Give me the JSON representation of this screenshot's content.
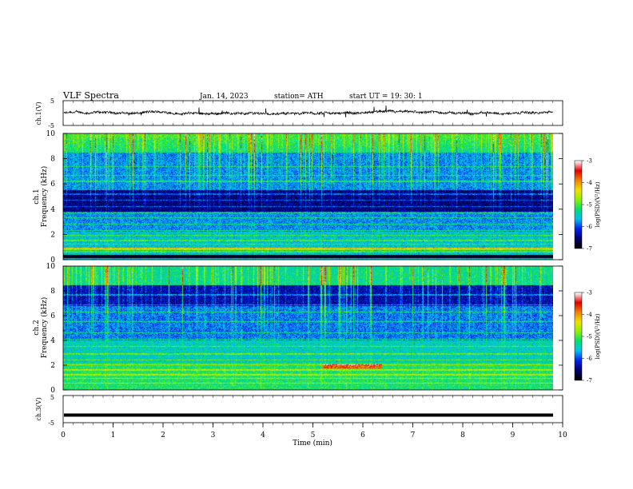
{
  "header": {
    "title": "VLF  Spectra",
    "date": "Jan.  14,  2023",
    "station": "station= ATH",
    "start_ut": "start  UT  =    19: 30: 1"
  },
  "chart_data": [
    {
      "type": "line",
      "id": "ch1",
      "ylabel": "ch.1(V)",
      "y_ticks": [
        5,
        -5
      ],
      "ylim": [
        -5,
        5
      ],
      "xlim": [
        0,
        10
      ],
      "series": [
        {
          "description": "noisy trace centred near 0 V with occasional spikes"
        }
      ],
      "level": 0,
      "color": "#000000"
    },
    {
      "type": "heatmap",
      "id": "ch1_spectrogram",
      "ylabel_line1": "ch.1",
      "ylabel_line2": "Frequency  (kHz)",
      "y_ticks": [
        "10",
        "8",
        "6",
        "4",
        "2",
        "0"
      ],
      "ylim": [
        0,
        10
      ],
      "xlim": [
        0,
        10
      ],
      "data_end_min": 9.8,
      "colorbar": {
        "label": "log(PSD)(V²/Hz)",
        "ticks": [
          "-3",
          "-4",
          "-5",
          "-6",
          "-7"
        ],
        "range": [
          -7,
          -3
        ]
      },
      "colorscale": [
        "#000000",
        "#00006e",
        "#0022ee",
        "#00c0f0",
        "#00e070",
        "#90f000",
        "#f0e000",
        "#f08000",
        "#e00000",
        "#ffffff"
      ]
    },
    {
      "type": "heatmap",
      "id": "ch2_spectrogram",
      "ylabel_line1": "ch.2",
      "ylabel_line2": "Frequency  (kHz)",
      "y_ticks": [
        "10",
        "8",
        "6",
        "4",
        "2",
        "0"
      ],
      "ylim": [
        0,
        10
      ],
      "xlim": [
        0,
        10
      ],
      "data_end_min": 9.8,
      "colorbar": {
        "label": "log(PSD)(V²/Hz)",
        "ticks": [
          "-3",
          "-4",
          "-5",
          "-6",
          "-7"
        ],
        "range": [
          -7,
          -3
        ]
      }
    },
    {
      "type": "line",
      "id": "ch3",
      "ylabel": "ch.3(V)",
      "y_ticks": [
        5,
        -5
      ],
      "ylim": [
        -5,
        5
      ],
      "xlim": [
        0,
        10
      ],
      "series": [
        {
          "description": "flat thick trace"
        }
      ],
      "level": -2.2,
      "color": "#000000"
    }
  ],
  "x_axis": {
    "label": "Time  (min)",
    "ticks": [
      "0",
      "1",
      "2",
      "3",
      "4",
      "5",
      "6",
      "7",
      "8",
      "9",
      "10"
    ]
  }
}
